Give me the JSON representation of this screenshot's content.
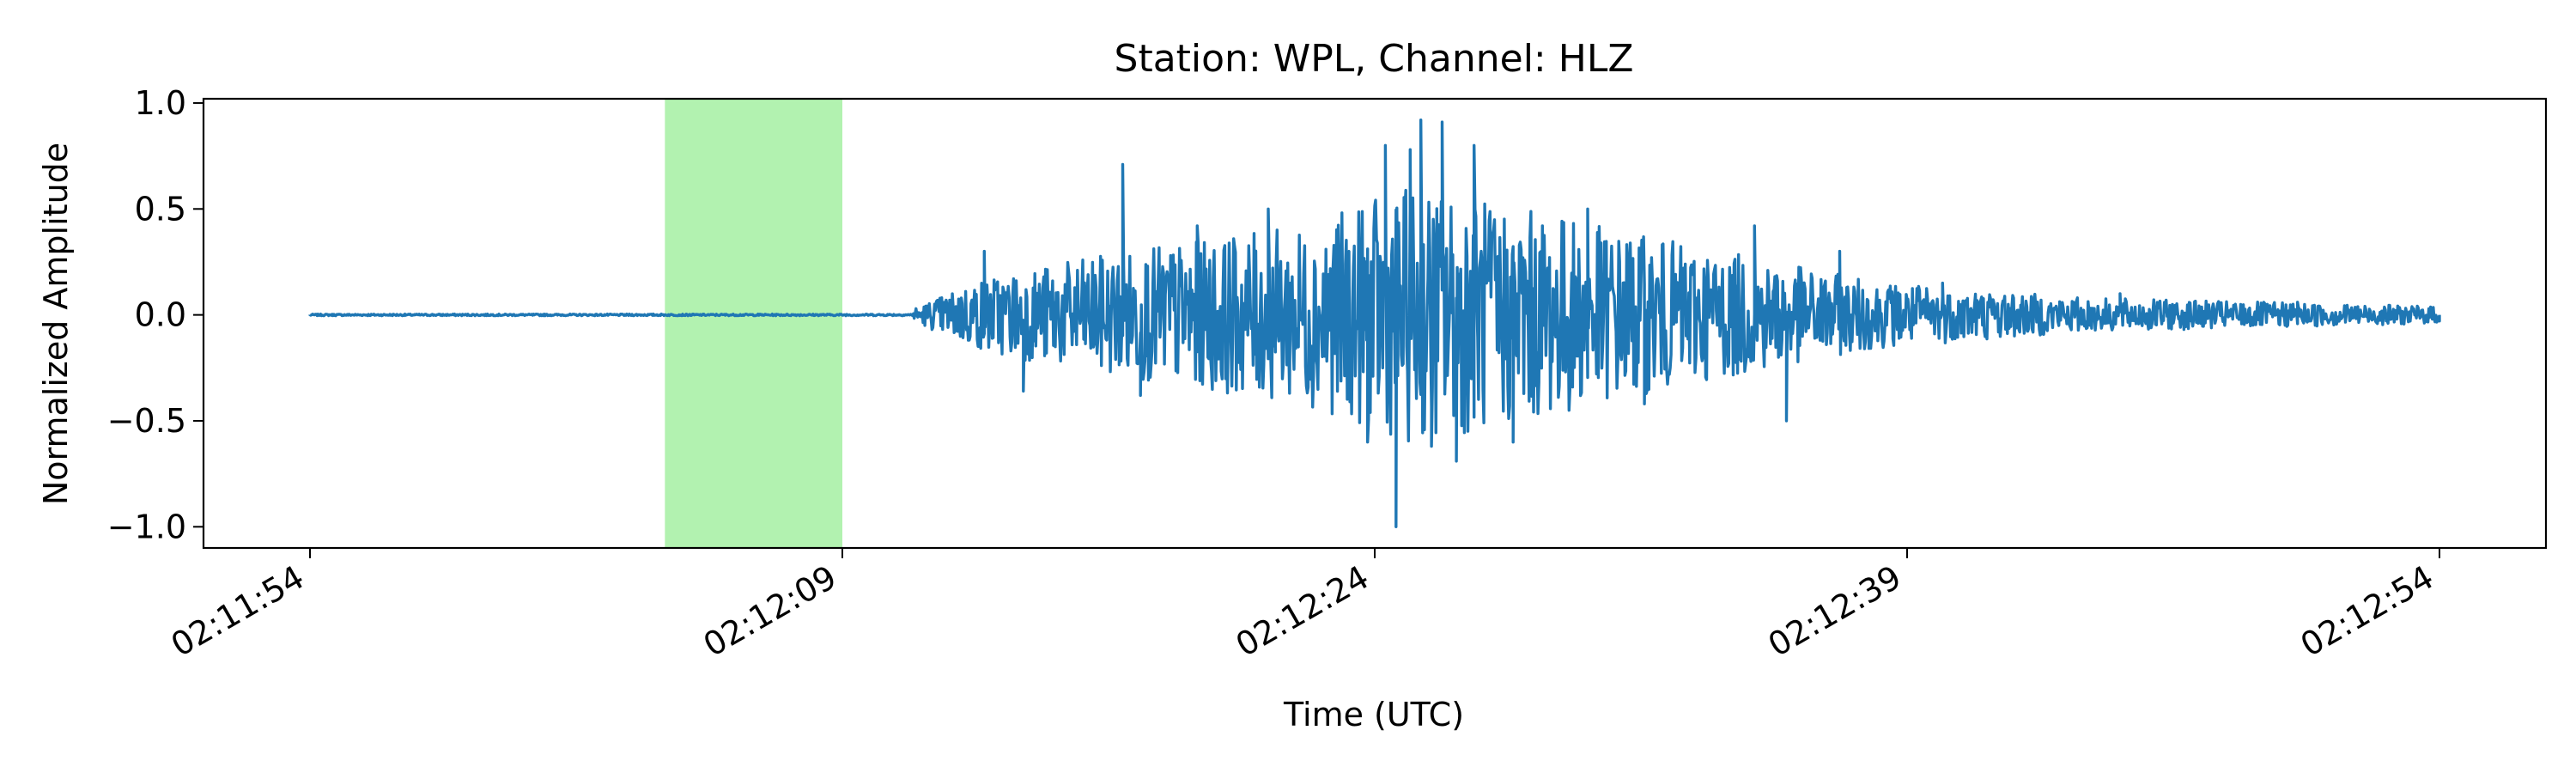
{
  "chart_data": {
    "type": "line",
    "title": "Station: WPL, Channel: HLZ",
    "xlabel": "Time (UTC)",
    "ylabel": "Normalized Amplitude",
    "x_axis_kind": "time",
    "x_range": [
      "02:11:51",
      "02:12:57"
    ],
    "ylim": [
      -1.1,
      1.02
    ],
    "xtick_labels": [
      "02:11:54",
      "02:12:09",
      "02:12:24",
      "02:12:39",
      "02:12:54"
    ],
    "ytick_labels": [
      "−1.0",
      "−0.5",
      "0.0",
      "0.5",
      "1.0"
    ],
    "grid": false,
    "legend": "none",
    "highlight_region": {
      "start": "02:12:04",
      "end": "02:12:09",
      "color": "#b2f2b0"
    },
    "series": [
      {
        "color": "#1f77b4",
        "x_start": "02:11:54",
        "x_end": "02:12:54",
        "keypoints": [
          {
            "t": "02:11:54.0",
            "v": 0.0
          },
          {
            "t": "02:12:11.0",
            "v": 0.0
          },
          {
            "t": "02:12:13.0",
            "v": 0.3
          },
          {
            "t": "02:12:14.1",
            "v": -0.36
          },
          {
            "t": "02:12:16.9",
            "v": 0.71
          },
          {
            "t": "02:12:17.4",
            "v": -0.38
          },
          {
            "t": "02:12:19.0",
            "v": 0.42
          },
          {
            "t": "02:12:21.0",
            "v": 0.5
          },
          {
            "t": "02:12:22.4",
            "v": -0.33
          },
          {
            "t": "02:12:23.8",
            "v": -0.6
          },
          {
            "t": "02:12:24.3",
            "v": 0.8
          },
          {
            "t": "02:12:24.6",
            "v": -1.0
          },
          {
            "t": "02:12:25.0",
            "v": 0.78
          },
          {
            "t": "02:12:25.3",
            "v": 0.92
          },
          {
            "t": "02:12:25.6",
            "v": -0.62
          },
          {
            "t": "02:12:25.9",
            "v": 0.91
          },
          {
            "t": "02:12:26.3",
            "v": -0.69
          },
          {
            "t": "02:12:26.8",
            "v": 0.8
          },
          {
            "t": "02:12:27.9",
            "v": -0.6
          },
          {
            "t": "02:12:30.0",
            "v": 0.5
          },
          {
            "t": "02:12:31.6",
            "v": -0.42
          },
          {
            "t": "02:12:34.7",
            "v": 0.42
          },
          {
            "t": "02:12:35.6",
            "v": -0.5
          },
          {
            "t": "02:12:37.1",
            "v": 0.3
          },
          {
            "t": "02:12:40.0",
            "v": 0.15
          },
          {
            "t": "02:12:45.0",
            "v": 0.1
          },
          {
            "t": "02:12:50.0",
            "v": 0.06
          },
          {
            "t": "02:12:54.0",
            "v": 0.0
          }
        ]
      }
    ]
  }
}
